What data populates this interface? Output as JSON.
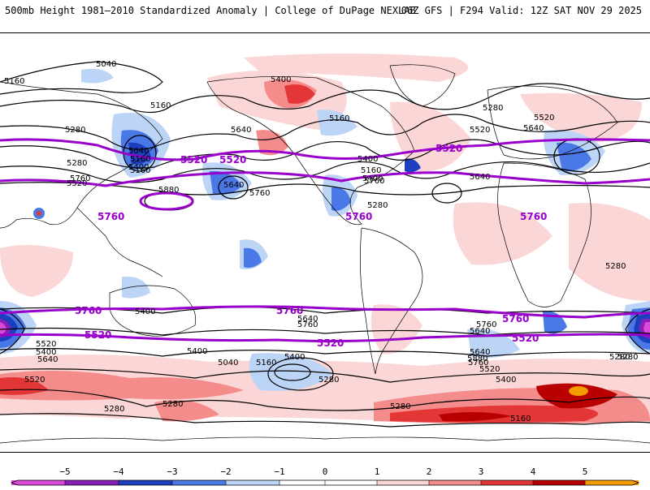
{
  "header": {
    "left_title": "500mb Height 1981–2010 Standardized Anomaly | College of DuPage NEXLAB",
    "right_title": "06Z GFS | F294 Valid: 12Z SAT NOV 29 2025"
  },
  "colors": {
    "anom_neg5": "#d94ad9",
    "anom_neg4": "#8a1fb8",
    "anom_neg3": "#1b3fbf",
    "anom_neg2": "#4a78e6",
    "anom_neg1": "#bcd4f5",
    "anom_pos1": "#fbd6d6",
    "anom_pos2": "#f58c8c",
    "anom_pos3": "#e33636",
    "anom_pos4": "#b80000",
    "anom_pos5": "#f59c00",
    "thick_contour": "#9900cc",
    "contour": "#000000"
  },
  "contour_labels": {
    "black": [
      "5040",
      "5160",
      "5160",
      "5280",
      "5400",
      "5160",
      "5280",
      "5640",
      "5520",
      "5040",
      "5160",
      "5400",
      "5280",
      "5160",
      "5520",
      "5640",
      "5760",
      "5880",
      "5640",
      "5760",
      "5400",
      "5160",
      "5280",
      "5400",
      "5640",
      "5760",
      "5520",
      "5280",
      "5400",
      "5760",
      "5640",
      "5400",
      "5880",
      "5760",
      "5640",
      "5520",
      "5400",
      "5640",
      "5520",
      "5400",
      "5280",
      "5160",
      "5040",
      "5280",
      "5280",
      "5160",
      "5280",
      "5760",
      "5640",
      "5520",
      "5400",
      "5280",
      "5280"
    ],
    "purple": [
      "5520",
      "5760",
      "5520",
      "5760",
      "5520",
      "5760",
      "5760",
      "5760",
      "5760",
      "5520",
      "5520",
      "5520"
    ]
  },
  "colorbar": {
    "ticks": [
      "−5",
      "−4",
      "−3",
      "−2",
      "−1",
      "0",
      "1",
      "2",
      "3",
      "4",
      "5"
    ]
  }
}
